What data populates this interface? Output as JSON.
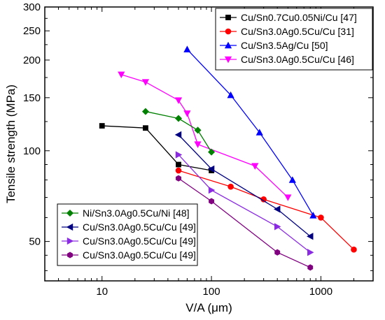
{
  "chart_data": {
    "type": "line",
    "title": "",
    "xlabel": "V/A (μm)",
    "ylabel": "Tensile strength (MPa)",
    "x_scale": "log",
    "y_scale": "log",
    "xlim": [
      3,
      3000
    ],
    "ylim": [
      37,
      300
    ],
    "x_ticks": [
      10,
      100,
      1000
    ],
    "x_tick_labels": [
      "10",
      "100",
      "1000"
    ],
    "y_ticks": [
      50,
      100,
      150,
      200,
      250,
      300
    ],
    "y_tick_labels": [
      "50",
      "100",
      "150",
      "200",
      "250",
      "300"
    ],
    "grid": false,
    "legends": [
      {
        "position": "top-right",
        "series_indices": [
          0,
          1,
          2,
          3
        ]
      },
      {
        "position": "bottom-left",
        "series_indices": [
          4,
          5,
          6,
          7
        ]
      }
    ],
    "series": [
      {
        "name": "Cu/Sn0.7Cu0.05Ni/Cu [47]",
        "color": "#000000",
        "marker": "square",
        "x": [
          10,
          25,
          50,
          100
        ],
        "y": [
          121,
          119,
          90,
          86
        ]
      },
      {
        "name": "Cu/Sn3.0Ag0.5Cu/Cu [31]",
        "color": "#ff0000",
        "marker": "circle",
        "x": [
          50,
          150,
          300,
          1000,
          2000
        ],
        "y": [
          86,
          76,
          69,
          60,
          47
        ]
      },
      {
        "name": "Cu/Sn3.5Ag/Cu [50]",
        "color": "#0000ff",
        "marker": "triangle-up",
        "x": [
          60,
          150,
          275,
          550,
          850
        ],
        "y": [
          217,
          153,
          115,
          80,
          61
        ]
      },
      {
        "name": "Cu/Sn3.0Ag0.5Cu/Cu [46]",
        "color": "#ff00ff",
        "marker": "triangle-down",
        "x": [
          15,
          25,
          50,
          60,
          75,
          250,
          500
        ],
        "y": [
          179,
          169,
          147,
          133,
          105,
          89,
          70
        ]
      },
      {
        "name": "Ni/Sn3.0Ag0.5Cu/Ni [48]",
        "color": "#008000",
        "marker": "diamond",
        "x": [
          25,
          50,
          75,
          100
        ],
        "y": [
          135,
          128,
          117,
          99
        ]
      },
      {
        "name": "Cu/Sn3.0Ag0.5Cu/Cu [49]",
        "color": "#000080",
        "marker": "triangle-left",
        "x": [
          50,
          100,
          400,
          800
        ],
        "y": [
          113,
          87,
          64,
          52
        ]
      },
      {
        "name": "Cu/Sn3.0Ag0.5Cu/Cu [49]",
        "color": "#8a2be2",
        "marker": "triangle-right",
        "x": [
          50,
          100,
          400,
          800
        ],
        "y": [
          97,
          74,
          56,
          46
        ]
      },
      {
        "name": "Cu/Sn3.0Ag0.5Cu/Cu [49]",
        "color": "#800080",
        "marker": "hexagon",
        "x": [
          50,
          100,
          400,
          800
        ],
        "y": [
          81,
          68,
          46,
          41
        ]
      }
    ]
  }
}
